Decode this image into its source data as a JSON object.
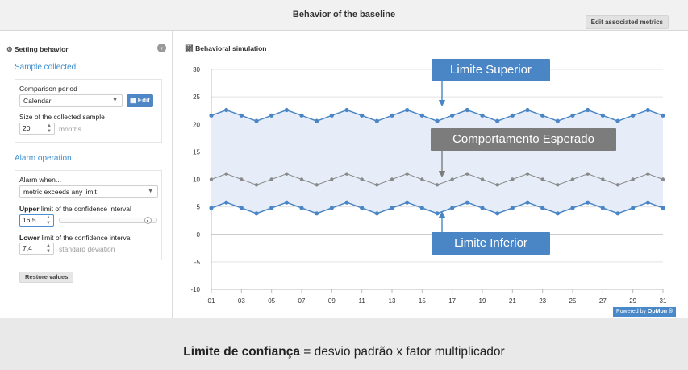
{
  "header": {
    "title": "Behavior of the baseline",
    "edit_metrics_label": "Edit associated metrics"
  },
  "sidebar": {
    "heading": "Setting behavior",
    "sample": {
      "title": "Sample collected",
      "comparison_label": "Comparison period",
      "comparison_value": "Calendar",
      "edit_label": "Edit",
      "size_label": "Size of the collected sample",
      "size_value": "20",
      "size_unit": "months"
    },
    "alarm": {
      "title": "Alarm operation",
      "when_label": "Alarm when...",
      "when_value": "metric exceeds any limit",
      "upper_bold": "Upper",
      "upper_rest": " limit of the confidence interval",
      "upper_value": "16.5",
      "upper_slider_fraction": 0.9,
      "lower_bold": "Lower",
      "lower_rest": " limit of the confidence interval",
      "lower_value": "7.4",
      "lower_unit": "standard deviation"
    },
    "restore_label": "Restore values"
  },
  "simulation": {
    "title": "Behavioral simulation",
    "powered_by": "Powered by",
    "brand": "OpMon ®"
  },
  "callouts": {
    "upper": "Limite Superior",
    "expected": "Comportamento Esperado",
    "lower": "Limite Inferior"
  },
  "caption": {
    "bold": "Limite de confiança",
    "rest": " = desvio padrão x fator multiplicador"
  },
  "colors": {
    "accent": "#4a86c5",
    "band": "#e6edf8",
    "expected": "#8a8a8a",
    "callout_gray": "#7c7c7c"
  },
  "chart_data": {
    "type": "line",
    "ylim": [
      -10,
      30
    ],
    "yticks": [
      -10,
      -5,
      0,
      5,
      10,
      15,
      20,
      25,
      30
    ],
    "xticks": [
      "01",
      "03",
      "05",
      "07",
      "09",
      "11",
      "13",
      "15",
      "17",
      "19",
      "21",
      "23",
      "25",
      "27",
      "29",
      "31"
    ],
    "x": [
      1,
      2,
      3,
      4,
      5,
      6,
      7,
      8,
      9,
      10,
      11,
      12,
      13,
      14,
      15,
      16,
      17,
      18,
      19,
      20,
      21,
      22,
      23,
      24,
      25,
      26,
      27,
      28,
      29,
      30,
      31
    ],
    "series": [
      {
        "name": "Limite Superior",
        "values": [
          21.6,
          22.6,
          21.6,
          20.6,
          21.6,
          22.6,
          21.6,
          20.6,
          21.6,
          22.6,
          21.6,
          20.6,
          21.6,
          22.6,
          21.6,
          20.6,
          21.6,
          22.6,
          21.6,
          20.6,
          21.6,
          22.6,
          21.6,
          20.6,
          21.6,
          22.6,
          21.6,
          20.6,
          21.6,
          22.6,
          21.6
        ]
      },
      {
        "name": "Comportamento Esperado",
        "values": [
          10,
          11,
          10,
          9,
          10,
          11,
          10,
          9,
          10,
          11,
          10,
          9,
          10,
          11,
          10,
          9,
          10,
          11,
          10,
          9,
          10,
          11,
          10,
          9,
          10,
          11,
          10,
          9,
          10,
          11,
          10
        ]
      },
      {
        "name": "Limite Inferior",
        "values": [
          4.8,
          5.8,
          4.8,
          3.8,
          4.8,
          5.8,
          4.8,
          3.8,
          4.8,
          5.8,
          4.8,
          3.8,
          4.8,
          5.8,
          4.8,
          3.8,
          4.8,
          5.8,
          4.8,
          3.8,
          4.8,
          5.8,
          4.8,
          3.8,
          4.8,
          5.8,
          4.8,
          3.8,
          4.8,
          5.8,
          4.8
        ]
      }
    ]
  }
}
